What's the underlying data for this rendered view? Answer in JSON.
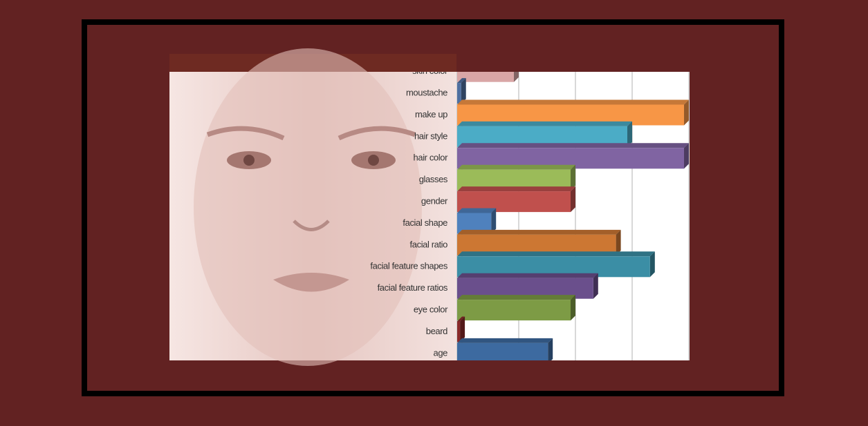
{
  "chart_data": {
    "type": "bar",
    "orientation": "horizontal",
    "categories": [
      "skin color",
      "moustache",
      "make up",
      "hair style",
      "hair color",
      "glasses",
      "gender",
      "facial shape",
      "facial ratio",
      "facial feature shapes",
      "facial feature ratios",
      "eye color",
      "beard",
      "age"
    ],
    "values": [
      1.0,
      0.07,
      4.0,
      3.0,
      4.0,
      2.0,
      2.0,
      0.6,
      2.8,
      3.4,
      2.4,
      2.0,
      0.05,
      1.6
    ],
    "colors": [
      "#d9a6a6",
      "#4f6fa0",
      "#f79646",
      "#4bacc6",
      "#8064a2",
      "#9bbb59",
      "#c0504d",
      "#4f81bd",
      "#cc7733",
      "#3b8ea5",
      "#6a4f8c",
      "#7d9b45",
      "#8b2a2a",
      "#3d6aa0"
    ],
    "xlim": [
      0,
      4
    ],
    "xticks": [
      0,
      1,
      2,
      3,
      4
    ],
    "grid": true
  }
}
